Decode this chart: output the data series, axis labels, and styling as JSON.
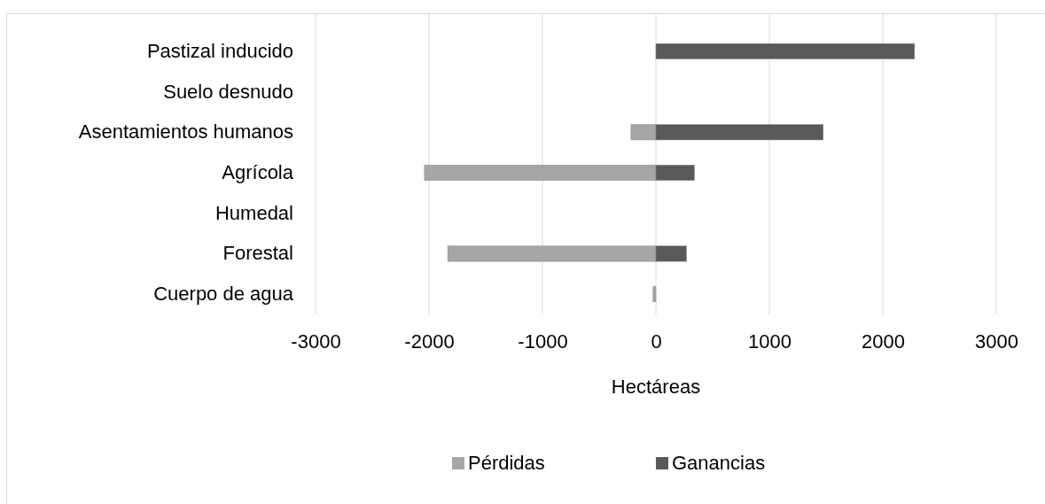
{
  "chart_data": {
    "type": "bar",
    "orientation": "horizontal",
    "xlabel": "Hectáreas",
    "categories": [
      "Pastizal inducido",
      "Suelo desnudo",
      "Asentamientos humanos",
      "Agrícola",
      "Humedal",
      "Forestal ",
      "Cuerpo de agua"
    ],
    "series": [
      {
        "name": "Pérdidas",
        "color": "#a6a6a6",
        "values": [
          null,
          null,
          -220,
          -2040,
          null,
          -1835,
          -25
        ]
      },
      {
        "name": "Ganancias",
        "color": "#595959",
        "values": [
          2280,
          null,
          1475,
          340,
          null,
          270,
          null
        ]
      }
    ],
    "xlim": [
      -3000,
      3000
    ],
    "xticks": [
      -3000,
      -2000,
      -1000,
      0,
      1000,
      2000,
      3000
    ],
    "grid": "x",
    "legend": "bottom"
  }
}
